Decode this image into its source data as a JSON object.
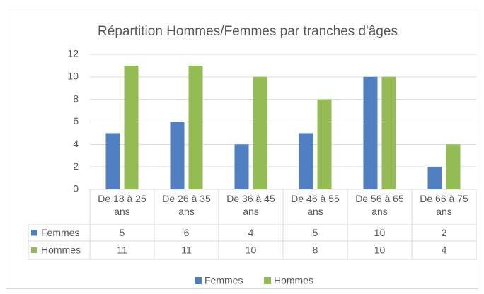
{
  "chart_data": {
    "type": "bar",
    "title": "Répartition Hommes/Femmes par tranches d'âges",
    "categories": [
      "De 18 à 25 ans",
      "De 26 à 35 ans",
      "De 36 à 45 ans",
      "De 46 à 55 ans",
      "De 56 à 65 ans",
      "De 66 à 75 ans"
    ],
    "series": [
      {
        "name": "Femmes",
        "color": "#4f7ec1",
        "values": [
          5,
          6,
          4,
          5,
          10,
          2
        ]
      },
      {
        "name": "Hommes",
        "color": "#93bc52",
        "values": [
          11,
          11,
          10,
          8,
          10,
          4
        ]
      }
    ],
    "ylim": [
      0,
      12
    ],
    "yticks": [
      0,
      2,
      4,
      6,
      8,
      10,
      12
    ],
    "grid": true,
    "legend": "bottom"
  }
}
